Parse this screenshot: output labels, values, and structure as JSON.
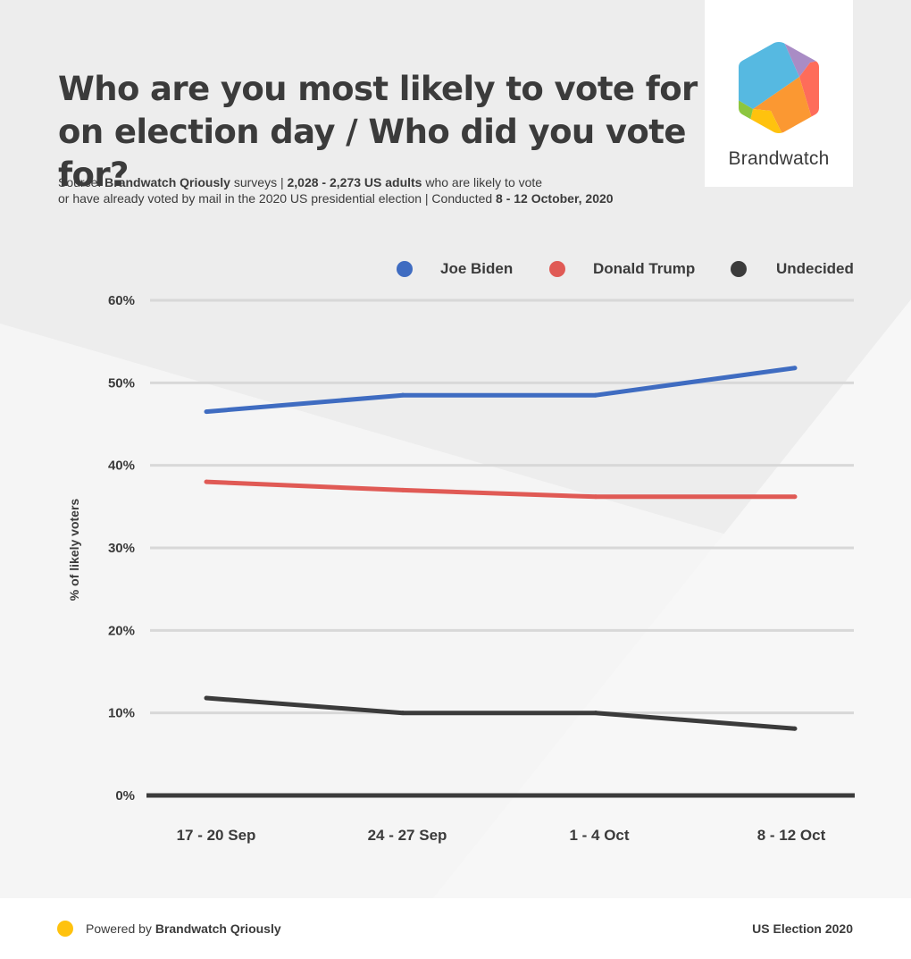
{
  "header": {
    "title_line1": "Who are you most likely to vote for",
    "title_line2": "on election day / Who did you vote for?",
    "source_prefix": "Source: ",
    "source_name": "Brandwatch Qriously",
    "source_mid": " surveys | ",
    "sample": "2,028 - 2,273 US adults",
    "sample_rest": " who are likely to vote",
    "line2_text": "or have already voted by mail in the 2020 US presidential election | Conducted ",
    "dates": "8 - 12 October, 2020"
  },
  "logo": {
    "wordmark": "Brandwatch",
    "icon": "brandwatch-hexagon-icon",
    "colors": [
      "#56b9e1",
      "#a98cc5",
      "#fe6c5a",
      "#fb9832",
      "#ffc20e",
      "#8cc63f"
    ]
  },
  "chart_data": {
    "type": "line",
    "categories": [
      "17 - 20 Sep",
      "24 - 27 Sep",
      "1 - 4 Oct",
      "8 - 12 Oct"
    ],
    "series": [
      {
        "name": "Joe Biden",
        "color": "#3f6cc1",
        "values": [
          46.5,
          48.5,
          48.5,
          51.8
        ]
      },
      {
        "name": "Donald Trump",
        "color": "#e05a55",
        "values": [
          38.0,
          37.0,
          36.2,
          36.2
        ]
      },
      {
        "name": "Undecided",
        "color": "#3b3b3b",
        "values": [
          11.8,
          10.0,
          10.0,
          8.1
        ]
      }
    ],
    "ylabel": "% of likely voters",
    "ylim": [
      0,
      60
    ],
    "yticks": [
      0,
      10,
      20,
      30,
      40,
      50,
      60
    ],
    "ytick_labels": [
      "0%",
      "10%",
      "20%",
      "30%",
      "40%",
      "50%",
      "60%"
    ],
    "grid": true,
    "legend": "top-right"
  },
  "footer": {
    "powered_prefix": "Powered by ",
    "powered_name": "Brandwatch Qriously",
    "right": "US Election 2020"
  }
}
